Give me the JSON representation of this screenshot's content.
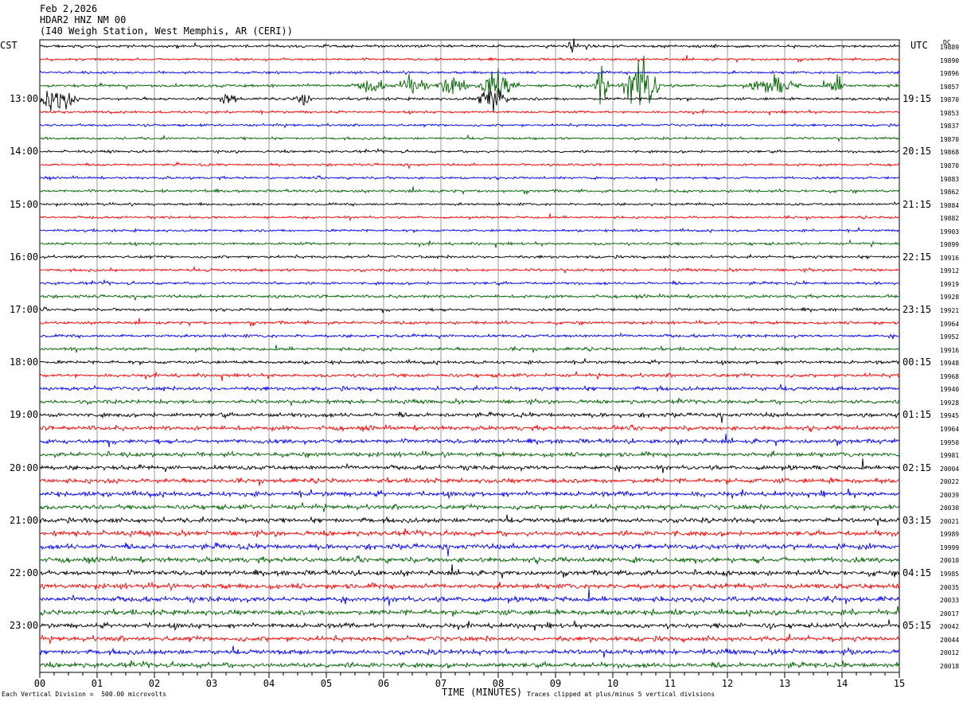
{
  "header": {
    "date": "Feb 2,2026",
    "station": "HDAR2 HNZ NM 00",
    "location": "(I40 Weigh Station, West Memphis, AR (CERI))"
  },
  "left_axis_label": "CST",
  "right_axis_label": "UTC",
  "dc_label": "DC",
  "footer": {
    "scale": "Each Vertical Division =  500.00 microvolts",
    "xlabel": "TIME (MINUTES)",
    "clip_note": "Traces clipped at plus/minus 5 vertical divisions"
  },
  "colors": {
    "trace_cycle": [
      "#000000",
      "#ff0000",
      "#0000ff",
      "#006400"
    ],
    "grid": "#808080"
  },
  "chart_data": {
    "type": "line",
    "title": "HDAR2 HNZ NM 00",
    "xlabel": "TIME (MINUTES)",
    "xlim": [
      0,
      15
    ],
    "x_ticks": [
      "00",
      "01",
      "02",
      "03",
      "04",
      "05",
      "06",
      "07",
      "08",
      "09",
      "10",
      "11",
      "12",
      "13",
      "14",
      "15"
    ],
    "left_time_labels": [
      "13:00",
      "14:00",
      "15:00",
      "16:00",
      "17:00",
      "18:00",
      "19:00",
      "20:00",
      "21:00",
      "22:00",
      "23:00"
    ],
    "right_time_labels": [
      "19:15",
      "20:15",
      "21:15",
      "22:15",
      "23:15",
      "00:15",
      "01:15",
      "02:15",
      "03:15",
      "04:15",
      "05:15"
    ],
    "dc_offsets": [
      19889,
      19890,
      19896,
      19857,
      19870,
      19853,
      19837,
      19870,
      19868,
      19870,
      19883,
      19862,
      19884,
      19882,
      19903,
      19899,
      19916,
      19912,
      19919,
      19928,
      19921,
      19964,
      19952,
      19916,
      19948,
      19968,
      19940,
      19928,
      19945,
      19964,
      19950,
      19981,
      20004,
      20022,
      20039,
      20030,
      20021,
      19989,
      19999,
      20010,
      19985,
      20035,
      20033,
      20017,
      20042,
      20044,
      20012,
      20018
    ],
    "noise_level": [
      0.2,
      0.18,
      0.18,
      0.22,
      0.2,
      0.18,
      0.18,
      0.18,
      0.18,
      0.18,
      0.18,
      0.2,
      0.18,
      0.18,
      0.18,
      0.2,
      0.2,
      0.2,
      0.2,
      0.22,
      0.2,
      0.22,
      0.22,
      0.24,
      0.24,
      0.26,
      0.28,
      0.28,
      0.3,
      0.32,
      0.32,
      0.32,
      0.32,
      0.34,
      0.36,
      0.34,
      0.34,
      0.36,
      0.38,
      0.36,
      0.36,
      0.38,
      0.38,
      0.38,
      0.36,
      0.36,
      0.36,
      0.36
    ],
    "events": [
      {
        "row": 0,
        "minute": 9.3,
        "amplitude": 1.5,
        "duration": 0.1
      },
      {
        "row": 3,
        "minute": 5.8,
        "amplitude": 1.0,
        "duration": 0.3
      },
      {
        "row": 3,
        "minute": 6.5,
        "amplitude": 1.6,
        "duration": 0.3
      },
      {
        "row": 3,
        "minute": 7.2,
        "amplitude": 1.6,
        "duration": 0.3
      },
      {
        "row": 3,
        "minute": 8.0,
        "amplitude": 2.5,
        "duration": 0.4
      },
      {
        "row": 3,
        "minute": 9.8,
        "amplitude": 5.0,
        "duration": 0.15
      },
      {
        "row": 3,
        "minute": 10.5,
        "amplitude": 5.0,
        "duration": 0.35
      },
      {
        "row": 3,
        "minute": 12.8,
        "amplitude": 1.4,
        "duration": 0.5
      },
      {
        "row": 3,
        "minute": 13.9,
        "amplitude": 1.2,
        "duration": 0.2
      },
      {
        "row": 4,
        "minute": 0.3,
        "amplitude": 2.0,
        "duration": 0.4
      },
      {
        "row": 4,
        "minute": 3.3,
        "amplitude": 1.4,
        "duration": 0.15
      },
      {
        "row": 4,
        "minute": 4.6,
        "amplitude": 1.2,
        "duration": 0.15
      },
      {
        "row": 4,
        "minute": 7.9,
        "amplitude": 2.5,
        "duration": 0.3
      }
    ],
    "grid": true
  }
}
